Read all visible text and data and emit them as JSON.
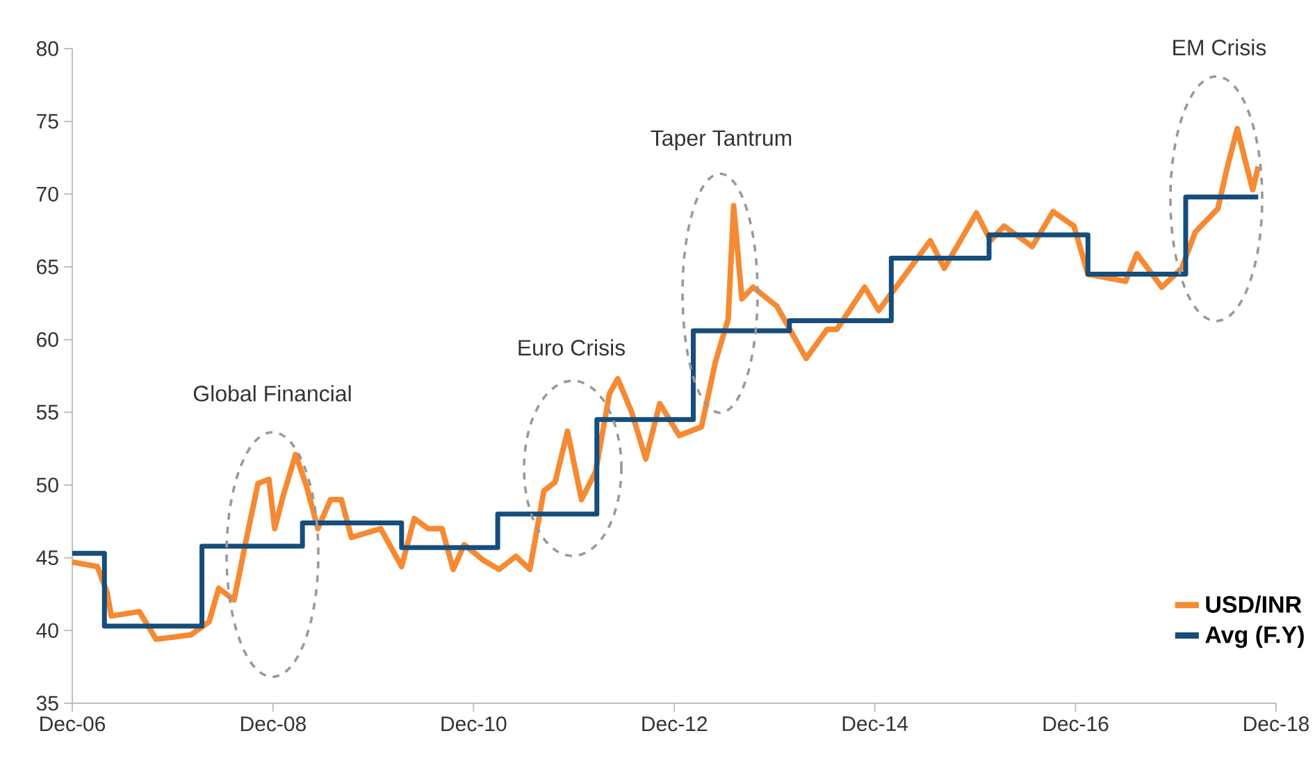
{
  "chart_data": {
    "type": "line",
    "xlim": [
      "2006-12-01",
      "2018-12-01"
    ],
    "xticks": [
      {
        "value": "2006-12-01",
        "label": "Dec-06"
      },
      {
        "value": "2008-12-01",
        "label": "Dec-08"
      },
      {
        "value": "2010-12-01",
        "label": "Dec-10"
      },
      {
        "value": "2012-12-01",
        "label": "Dec-12"
      },
      {
        "value": "2014-12-01",
        "label": "Dec-14"
      },
      {
        "value": "2016-12-01",
        "label": "Dec-16"
      },
      {
        "value": "2018-12-01",
        "label": "Dec-18"
      }
    ],
    "ylim": [
      35,
      80
    ],
    "yticks": [
      35,
      40,
      45,
      50,
      55,
      60,
      65,
      70,
      75,
      80
    ],
    "legend": "bottom right",
    "series": [
      {
        "name": "USD/INR",
        "color": "#f58a33",
        "x": [
          "2006-12-01",
          "2007-03-02",
          "2007-04-07",
          "2007-04-22",
          "2007-08-02",
          "2007-10-02",
          "2008-02-06",
          "2008-04-12",
          "2008-05-17",
          "2008-07-12",
          "2008-08-27",
          "2008-10-07",
          "2008-11-16",
          "2008-12-07",
          "2009-01-06",
          "2009-02-21",
          "2009-04-02",
          "2009-05-13",
          "2009-06-28",
          "2009-08-07",
          "2009-09-12",
          "2009-12-28",
          "2010-03-14",
          "2010-04-29",
          "2010-06-18",
          "2010-08-08",
          "2010-09-18",
          "2010-10-28",
          "2011-01-08",
          "2011-03-04",
          "2011-05-04",
          "2011-06-24",
          "2011-08-14",
          "2011-09-24",
          "2011-11-08",
          "2011-12-29",
          "2012-02-18",
          "2012-04-09",
          "2012-05-09",
          "2012-06-29",
          "2012-08-19",
          "2012-10-09",
          "2012-12-19",
          "2013-03-10",
          "2013-04-30",
          "2013-06-15",
          "2013-07-05",
          "2013-08-04",
          "2013-09-14",
          "2013-12-09",
          "2014-03-26",
          "2014-06-10",
          "2014-07-16",
          "2014-10-25",
          "2014-12-15",
          "2015-03-12",
          "2015-06-21",
          "2015-08-11",
          "2015-12-06",
          "2016-01-26",
          "2016-03-16",
          "2016-06-26",
          "2016-09-10",
          "2016-11-25",
          "2017-01-15",
          "2017-06-01",
          "2017-07-12",
          "2017-10-11",
          "2017-12-22",
          "2018-02-10",
          "2018-05-03",
          "2018-06-07",
          "2018-07-13",
          "2018-08-12",
          "2018-09-07",
          "2018-09-27"
        ],
        "values": [
          44.7,
          44.4,
          42.6,
          41.0,
          41.3,
          39.4,
          39.7,
          40.6,
          42.9,
          42.1,
          46.4,
          50.1,
          50.4,
          47.0,
          49.2,
          52.1,
          49.9,
          47.0,
          49.0,
          49.0,
          46.4,
          47.0,
          44.4,
          47.7,
          47.0,
          47.0,
          44.2,
          45.9,
          44.8,
          44.2,
          45.1,
          44.2,
          49.6,
          50.2,
          53.7,
          49.0,
          50.9,
          56.3,
          57.3,
          55.0,
          51.8,
          55.6,
          53.4,
          54.0,
          58.5,
          61.4,
          69.2,
          62.8,
          63.6,
          62.3,
          58.7,
          60.7,
          60.7,
          63.6,
          62.0,
          64.2,
          66.8,
          64.9,
          68.7,
          66.8,
          67.8,
          66.4,
          68.8,
          67.8,
          64.5,
          64.0,
          65.9,
          63.6,
          64.9,
          67.4,
          69.0,
          71.9,
          74.5,
          72.2,
          70.3,
          71.9
        ]
      },
      {
        "name": "Avg (F.Y)",
        "type": "step",
        "color": "#154d7c",
        "x": [
          "2006-12-01",
          "2007-03-28",
          "2008-03-17",
          "2009-03-18",
          "2010-03-14",
          "2011-02-27",
          "2012-02-23",
          "2013-02-08",
          "2014-01-24",
          "2015-01-30",
          "2016-01-21",
          "2017-01-15",
          "2018-01-06",
          "2018-09-27"
        ],
        "values": [
          45.3,
          40.3,
          45.8,
          47.4,
          45.7,
          48.0,
          54.5,
          60.6,
          61.3,
          65.6,
          67.2,
          64.5,
          69.8,
          69.8
        ]
      }
    ],
    "annotations": [
      "Global Financial",
      "Euro Crisis",
      "Taper Tantrum",
      "EM Crisis"
    ]
  }
}
